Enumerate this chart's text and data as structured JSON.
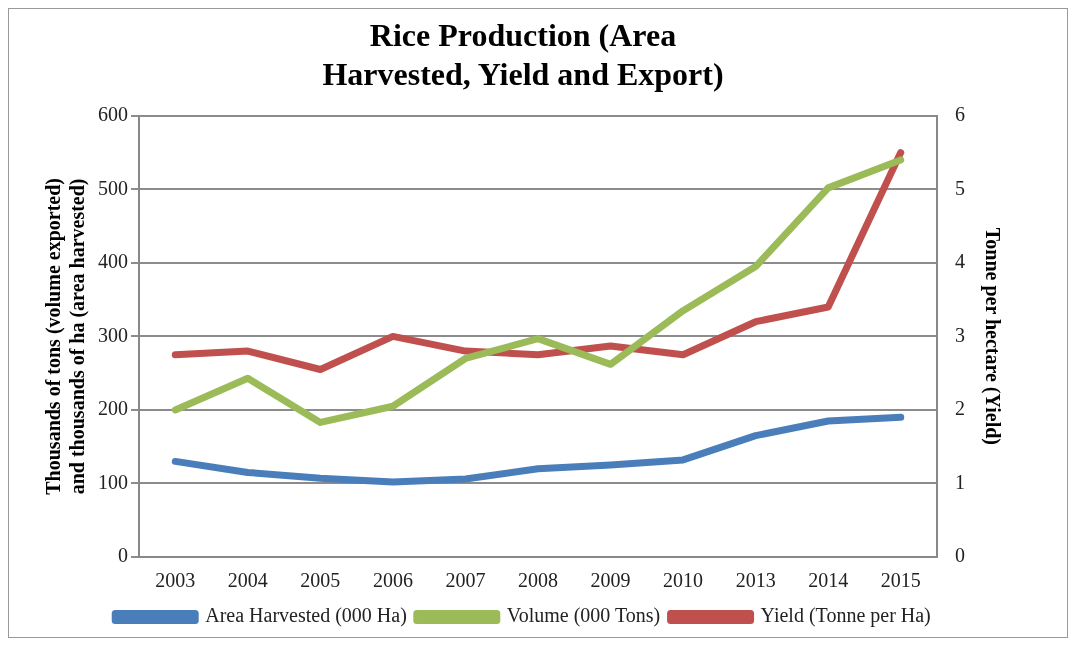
{
  "chart_data": {
    "type": "line",
    "title": "Rice Production (Area Harvested, Yield and Export)",
    "ylabel": "Thousands of tons (volume exported) and thousands of ha (area harvested)",
    "y2label": "Tonne per hectare (Yield)",
    "categories": [
      "2003",
      "2004",
      "2005",
      "2006",
      "2007",
      "2008",
      "2009",
      "2010",
      "2013",
      "2014",
      "2015"
    ],
    "series": [
      {
        "name": "Area Harvested (000 Ha)",
        "color": "#4a7ebb",
        "values": [
          130,
          115,
          107,
          102,
          106,
          120,
          125,
          132,
          165,
          185,
          190
        ]
      },
      {
        "name": "Volume (000 Tons)",
        "color": "#9bbb59",
        "values": [
          200,
          243,
          183,
          205,
          270,
          297,
          262,
          335,
          395,
          502,
          540
        ]
      },
      {
        "name": "Yield (Tonne per Ha)",
        "color": "#c0504d",
        "axis": "y2",
        "values": [
          2.75,
          2.8,
          2.55,
          3.0,
          2.8,
          2.75,
          2.87,
          2.75,
          3.2,
          3.4,
          5.5
        ]
      }
    ],
    "ylim": [
      0,
      600
    ],
    "yticks": [
      0,
      100,
      200,
      300,
      400,
      500,
      600
    ],
    "y2lim": [
      0,
      6
    ],
    "y2ticks": [
      0,
      1,
      2,
      3,
      4,
      5,
      6
    ],
    "grid": "y",
    "legend": "bottom",
    "marker": "none",
    "line_style": "solid"
  }
}
